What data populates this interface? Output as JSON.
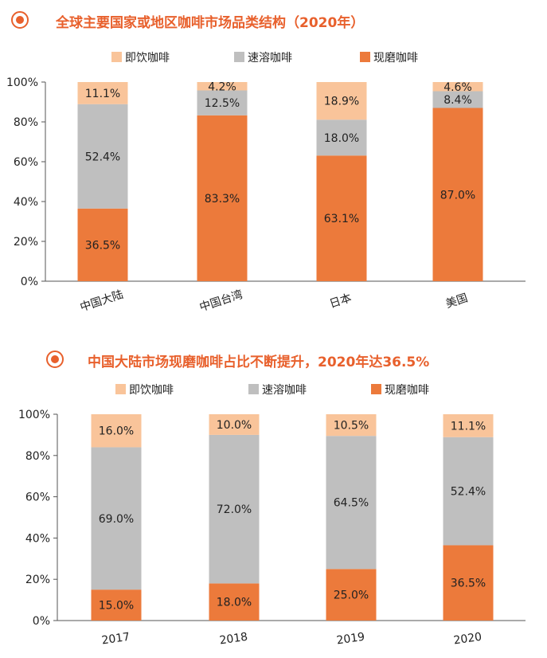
{
  "colors": {
    "instant": "#f9c49a",
    "soluble": "#bfbfbf",
    "fresh": "#ec7a3b",
    "title": "#e8602c",
    "axis": "#555555",
    "text": "#222222"
  },
  "icons": {
    "title_marker": "target-circle-icon"
  },
  "chart_data": [
    {
      "type": "bar",
      "stacked": true,
      "title": "全球主要国家或地区咖啡市场品类结构（2020年）",
      "legend_position": "top-center",
      "categories": [
        "中国大陆",
        "中国台湾",
        "日本",
        "美国"
      ],
      "series": [
        {
          "name": "现磨咖啡",
          "color": "#ec7a3b",
          "values": [
            36.5,
            83.3,
            63.1,
            87.0
          ],
          "labels": [
            "36.5%",
            "83.3%",
            "63.1%",
            "87.0%"
          ]
        },
        {
          "name": "速溶咖啡",
          "color": "#bfbfbf",
          "values": [
            52.4,
            12.5,
            18.0,
            8.4
          ],
          "labels": [
            "52.4%",
            "12.5%",
            "18.0%",
            "8.4%"
          ]
        },
        {
          "name": "即饮咖啡",
          "color": "#f9c49a",
          "values": [
            11.1,
            4.2,
            18.9,
            4.6
          ],
          "labels": [
            "11.1%",
            "4.2%",
            "18.9%",
            "4.6%"
          ]
        }
      ],
      "legend_order": [
        "即饮咖啡",
        "速溶咖啡",
        "现磨咖啡"
      ],
      "yticks": [
        "0%",
        "20%",
        "40%",
        "60%",
        "80%",
        "100%"
      ],
      "ylim": [
        0,
        100
      ],
      "grid": false,
      "xtick_rotation": -18
    },
    {
      "type": "bar",
      "stacked": true,
      "title": "中国大陆市场现磨咖啡占比不断提升，2020年达36.5%",
      "legend_position": "top-center",
      "categories": [
        "2017",
        "2018",
        "2019",
        "2020"
      ],
      "series": [
        {
          "name": "现磨咖啡",
          "color": "#ec7a3b",
          "values": [
            15.0,
            18.0,
            25.0,
            36.5
          ],
          "labels": [
            "15.0%",
            "18.0%",
            "25.0%",
            "36.5%"
          ]
        },
        {
          "name": "速溶咖啡",
          "color": "#bfbfbf",
          "values": [
            69.0,
            72.0,
            64.5,
            52.4
          ],
          "labels": [
            "69.0%",
            "72.0%",
            "64.5%",
            "52.4%"
          ]
        },
        {
          "name": "即饮咖啡",
          "color": "#f9c49a",
          "values": [
            16.0,
            10.0,
            10.5,
            11.1
          ],
          "labels": [
            "16.0%",
            "10.0%",
            "10.5%",
            "11.1%"
          ]
        }
      ],
      "legend_order": [
        "即饮咖啡",
        "速溶咖啡",
        "现磨咖啡"
      ],
      "yticks": [
        "0%",
        "20%",
        "40%",
        "60%",
        "80%",
        "100%"
      ],
      "ylim": [
        0,
        100
      ],
      "grid": false,
      "xtick_rotation": -8
    }
  ]
}
